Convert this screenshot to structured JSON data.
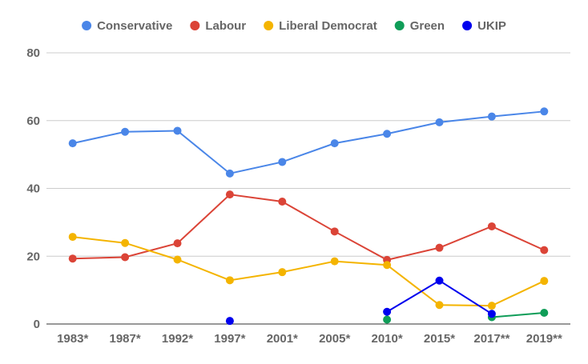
{
  "chart_data": {
    "type": "line",
    "title": "",
    "xlabel": "",
    "ylabel": "",
    "categories": [
      "1983*",
      "1987*",
      "1992*",
      "1997*",
      "2001*",
      "2005*",
      "2010*",
      "2015*",
      "2017**",
      "2019**"
    ],
    "ylim": [
      0,
      80
    ],
    "yticks": [
      "0",
      "20",
      "40",
      "60",
      "80"
    ],
    "grid": true,
    "legend_position": "top",
    "series": [
      {
        "name": "Conservative",
        "color": "#4a86e8",
        "values": [
          53.3,
          56.7,
          57.0,
          44.4,
          47.8,
          53.3,
          56.1,
          59.5,
          61.2,
          62.7
        ]
      },
      {
        "name": "Labour",
        "color": "#db4437",
        "values": [
          19.3,
          19.7,
          23.8,
          38.2,
          36.1,
          27.3,
          18.9,
          22.5,
          28.8,
          21.8
        ]
      },
      {
        "name": "Liberal Democrat",
        "color": "#f4b400",
        "values": [
          25.7,
          23.9,
          19.0,
          12.9,
          15.3,
          18.5,
          17.4,
          5.6,
          5.4,
          12.7
        ]
      },
      {
        "name": "Green",
        "color": "#0f9d58",
        "values": [
          null,
          null,
          null,
          null,
          null,
          null,
          1.3,
          null,
          2.0,
          3.3
        ]
      },
      {
        "name": "UKIP",
        "color": "#0000ee",
        "values": [
          null,
          null,
          null,
          0.9,
          null,
          null,
          3.6,
          12.8,
          3.0,
          null
        ]
      }
    ]
  }
}
